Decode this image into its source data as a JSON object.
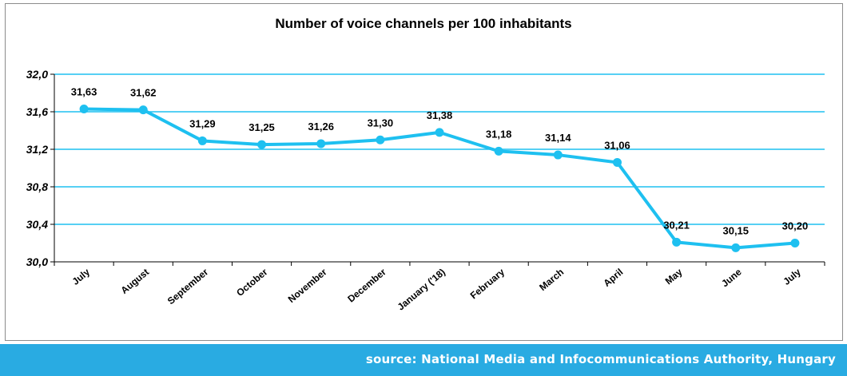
{
  "chart_data": {
    "type": "line",
    "title": "Number of voice channels per 100 inhabitants",
    "xlabel": "",
    "ylabel": "",
    "categories": [
      "July",
      "August",
      "September",
      "October",
      "November",
      "December",
      "January ('18)",
      "February",
      "March",
      "April",
      "May",
      "June",
      "July"
    ],
    "series": [
      {
        "values": [
          31.63,
          31.62,
          31.29,
          31.25,
          31.26,
          31.3,
          31.38,
          31.18,
          31.14,
          31.06,
          30.21,
          30.15,
          30.2
        ],
        "labels": [
          "31,63",
          "31,62",
          "31,29",
          "31,25",
          "31,26",
          "31,30",
          "31,38",
          "31,18",
          "31,14",
          "31,06",
          "30,21",
          "30,15",
          "30,20"
        ]
      }
    ],
    "ylim": [
      30.0,
      32.0
    ],
    "yticks": [
      30.0,
      30.4,
      30.8,
      31.2,
      31.6,
      32.0
    ],
    "ytick_labels": [
      "30,0",
      "30,4",
      "30,8",
      "31,2",
      "31,6",
      "32,0"
    ],
    "grid": true,
    "legend": "none",
    "colors": {
      "line": "#1ec0f0",
      "grid": "#1ec0f0",
      "axis": "#000000"
    }
  },
  "footer": {
    "source": "source: National Media and Infocommunications Authority, Hungary",
    "color": "#29abe2"
  }
}
